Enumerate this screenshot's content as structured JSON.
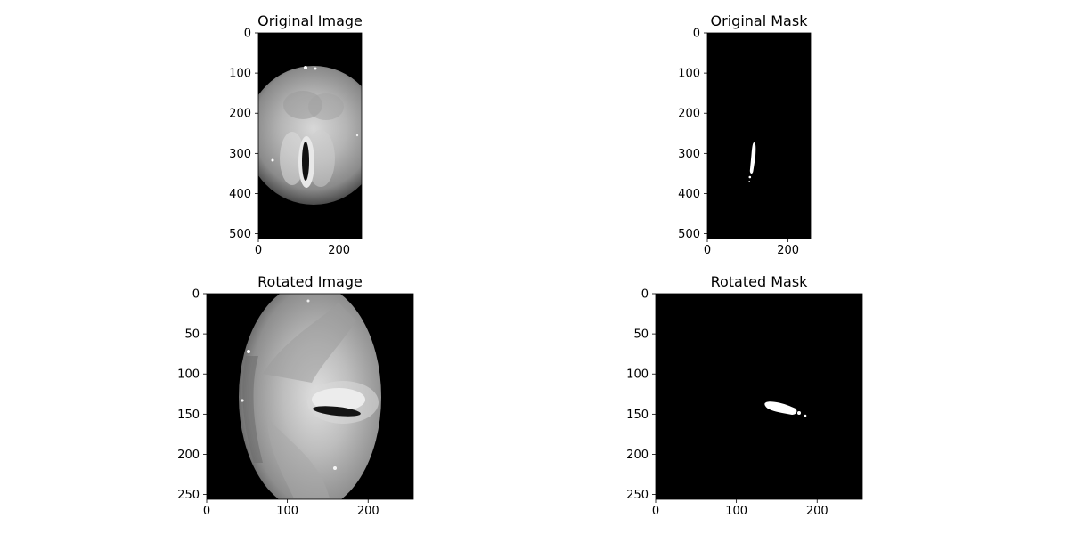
{
  "figure": {
    "layout": "2x2 grid of image panels",
    "colormap": "gray"
  },
  "chart_data": [
    {
      "type": "image",
      "title": "Original Image",
      "image_shape": [
        512,
        256
      ],
      "xlim": [
        0,
        256
      ],
      "ylim": [
        512,
        0
      ],
      "x_ticks": [
        0,
        200
      ],
      "y_ticks": [
        0,
        100,
        200,
        300,
        400,
        500
      ],
      "content": "grayscale endoscopic view of glottis, circular field of view on black background, dark vertical glottal gap near x≈120, y≈280–380"
    },
    {
      "type": "image",
      "title": "Original Mask",
      "image_shape": [
        512,
        256
      ],
      "xlim": [
        0,
        256
      ],
      "ylim": [
        512,
        0
      ],
      "x_ticks": [
        0,
        200
      ],
      "y_ticks": [
        0,
        100,
        200,
        300,
        400,
        500
      ],
      "content": "binary mask: thin white near-vertical blob from about (118,275) to (108,375) on black"
    },
    {
      "type": "image",
      "title": "Rotated Image",
      "image_shape": [
        256,
        256
      ],
      "xlim": [
        0,
        256
      ],
      "ylim": [
        256,
        0
      ],
      "x_ticks": [
        0,
        100,
        200
      ],
      "y_ticks": [
        0,
        50,
        100,
        150,
        200,
        250
      ],
      "content": "rotated grayscale endoscopic view, elliptical field of view, dark horizontal glottal gap near x≈140–190, y≈135–155"
    },
    {
      "type": "image",
      "title": "Rotated Mask",
      "image_shape": [
        256,
        256
      ],
      "xlim": [
        0,
        256
      ],
      "ylim": [
        256,
        0
      ],
      "x_ticks": [
        0,
        100,
        200
      ],
      "y_ticks": [
        0,
        50,
        100,
        150,
        200,
        250
      ],
      "content": "binary mask: thin white near-horizontal blob from about (138,137) to (185,153) on black"
    }
  ]
}
